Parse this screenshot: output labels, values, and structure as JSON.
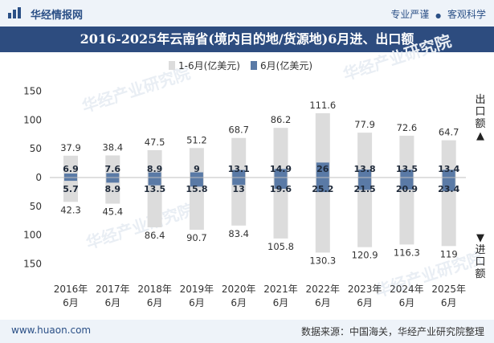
{
  "header": {
    "brand": "华经情报网",
    "tagline_1": "专业严谨",
    "tagline_sep": "●",
    "tagline_2": "客观科学"
  },
  "watermark": "华经产业研究院",
  "footer": {
    "website": "www.huaon.com",
    "source": "数据来源：中国海关，华经产业研究院整理"
  },
  "colors": {
    "bar_cumulative": "#dcdcdc",
    "bar_month": "#5a7aa6",
    "header_band": "#2d4c7f"
  },
  "chart_data": {
    "type": "bar",
    "title": "2016-2025年云南省(境内目的地/货源地)6月进、出口额",
    "categories": [
      "2016年6月",
      "2017年6月",
      "2018年6月",
      "2019年6月",
      "2020年6月",
      "2021年6月",
      "2022年6月",
      "2023年6月",
      "2024年6月",
      "2025年6月"
    ],
    "series": [
      {
        "name": "1-6月(亿美元)",
        "export": [
          37.9,
          38.4,
          47.5,
          51.2,
          68.7,
          86.2,
          111.6,
          77.9,
          72.6,
          64.7
        ],
        "import": [
          42.3,
          45.4,
          86.4,
          90.7,
          83.4,
          105.8,
          130.3,
          120.9,
          116.3,
          119
        ]
      },
      {
        "name": "6月(亿美元)",
        "export": [
          6.9,
          7.6,
          8.9,
          9,
          13.1,
          14.9,
          26,
          13.8,
          13.5,
          13.4
        ],
        "import": [
          5.7,
          8.9,
          13.5,
          15.8,
          13,
          19.6,
          25.2,
          21.5,
          20.9,
          23.4
        ]
      }
    ],
    "yticks": [
      "150",
      "100",
      "50",
      "0",
      "50",
      "100",
      "150"
    ],
    "ylim": [
      -150,
      150
    ],
    "side_labels": {
      "export": "出口额▲",
      "import": "▼进口额"
    },
    "grid": false,
    "legend_position": "top"
  }
}
